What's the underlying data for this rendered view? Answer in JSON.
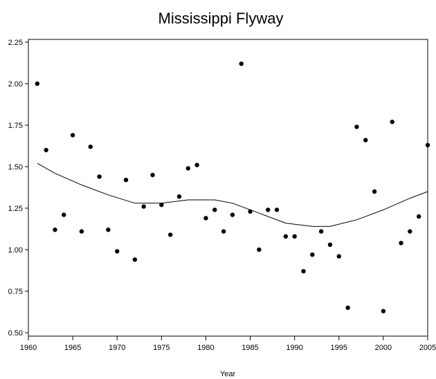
{
  "chart_data": {
    "type": "scatter",
    "title": "Mississippi Flyway",
    "xlabel": "Year",
    "ylabel": "",
    "xlim": [
      1960,
      2005
    ],
    "ylim": [
      0.5,
      2.25
    ],
    "x_ticks": [
      "1960",
      "1965",
      "1970",
      "1975",
      "1980",
      "1985",
      "1990",
      "1995",
      "2000",
      "2005"
    ],
    "y_ticks": [
      "0.50",
      "0.75",
      "1.00",
      "1.25",
      "1.50",
      "1.75",
      "2.00",
      "2.25"
    ],
    "grid": false,
    "legend": "none",
    "series": [
      {
        "kind": "points",
        "x": [
          1961,
          1962,
          1963,
          1964,
          1965,
          1966,
          1967,
          1968,
          1969,
          1970,
          1971,
          1972,
          1973,
          1974,
          1975,
          1976,
          1977,
          1978,
          1979,
          1980,
          1981,
          1982,
          1983,
          1984,
          1985,
          1986,
          1987,
          1988,
          1989,
          1990,
          1991,
          1992,
          1993,
          1994,
          1995,
          1996,
          1997,
          1998,
          1999,
          2000,
          2001,
          2002,
          2003,
          2004,
          2005
        ],
        "y": [
          2.0,
          1.6,
          1.12,
          1.21,
          1.69,
          1.11,
          1.62,
          1.44,
          1.12,
          0.99,
          1.42,
          0.94,
          1.26,
          1.45,
          1.27,
          1.09,
          1.32,
          1.49,
          1.51,
          1.19,
          1.24,
          1.11,
          1.21,
          2.12,
          1.23,
          1.0,
          1.24,
          1.24,
          1.08,
          1.08,
          0.87,
          0.97,
          1.11,
          1.03,
          0.96,
          0.65,
          1.74,
          1.66,
          1.35,
          0.63,
          1.77,
          1.04,
          1.11,
          1.2,
          1.63
        ]
      },
      {
        "kind": "smooth-line",
        "x": [
          1961,
          1963,
          1966,
          1969,
          1972,
          1975,
          1978,
          1981,
          1983,
          1986,
          1989,
          1992,
          1994,
          1997,
          2000,
          2003,
          2005
        ],
        "y": [
          1.52,
          1.46,
          1.39,
          1.33,
          1.28,
          1.28,
          1.3,
          1.3,
          1.28,
          1.22,
          1.16,
          1.14,
          1.14,
          1.18,
          1.24,
          1.31,
          1.35
        ]
      }
    ]
  }
}
